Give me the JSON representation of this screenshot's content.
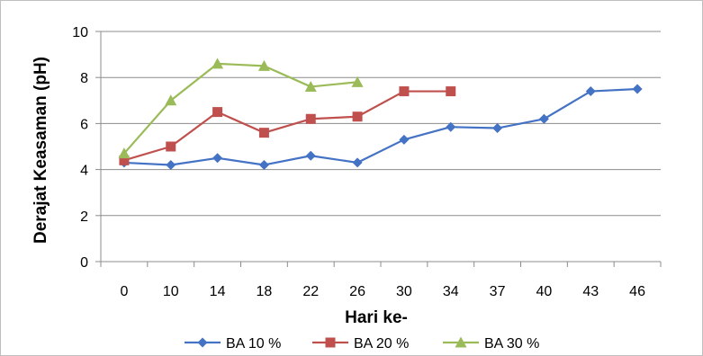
{
  "chart_data": {
    "type": "line",
    "xlabel": "Hari ke-",
    "ylabel": "Derajat Keasaman (pH)",
    "categories": [
      "0",
      "10",
      "14",
      "18",
      "22",
      "26",
      "30",
      "34",
      "37",
      "40",
      "43",
      "46"
    ],
    "ylim": [
      0,
      10
    ],
    "yticks": [
      0,
      2,
      4,
      6,
      8,
      10
    ],
    "grid": true,
    "legend_position": "bottom",
    "series": [
      {
        "name": "BA 10 %",
        "color": "#4472C4",
        "marker": "diamond",
        "values": [
          4.3,
          4.2,
          4.5,
          4.2,
          4.6,
          4.3,
          5.3,
          5.85,
          5.8,
          6.2,
          7.4,
          7.5
        ]
      },
      {
        "name": "BA 20 %",
        "color": "#C0504D",
        "marker": "square",
        "values": [
          4.4,
          5.0,
          6.5,
          5.6,
          6.2,
          6.3,
          7.4,
          7.4,
          null,
          null,
          null,
          null
        ]
      },
      {
        "name": "BA 30 %",
        "color": "#9BBB59",
        "marker": "triangle",
        "values": [
          4.7,
          7.0,
          8.6,
          8.5,
          7.6,
          7.8,
          null,
          null,
          null,
          null,
          null,
          null
        ]
      }
    ]
  }
}
